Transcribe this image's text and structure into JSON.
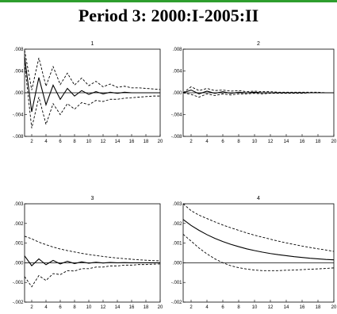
{
  "header": {
    "title": "Period 3: 2000:I-2005:II",
    "rule_color": "#2e9e2e"
  },
  "chart_data": [
    {
      "type": "line",
      "title": "1",
      "ylim": [
        -0.008,
        0.008
      ],
      "yticks": [
        -0.008,
        -0.004,
        0.0,
        0.004,
        0.008
      ],
      "ytick_labels": [
        "-.008",
        "-.004",
        ".000",
        ".004",
        ".008"
      ],
      "xlim": [
        1,
        20
      ],
      "xticks": [
        2,
        4,
        6,
        8,
        10,
        12,
        14,
        16,
        18,
        20
      ],
      "xtick_labels": [
        "2",
        "4",
        "6",
        "8",
        "10",
        "12",
        "14",
        "16",
        "18",
        "20"
      ],
      "x": [
        1,
        2,
        3,
        4,
        5,
        6,
        7,
        8,
        9,
        10,
        11,
        12,
        13,
        14,
        15,
        16,
        17,
        18,
        19,
        20
      ],
      "series": [
        {
          "style": "solid",
          "values": [
            0.0066,
            -0.0035,
            0.0028,
            -0.0022,
            0.0014,
            -0.0012,
            0.0008,
            -0.0006,
            0.0004,
            -0.0003,
            0.0002,
            -0.0002,
            0.0001,
            -0.0001,
            0.0001,
            0.0,
            0.0,
            0.0,
            0.0,
            0.0
          ]
        },
        {
          "style": "dashed",
          "values": [
            0.0078,
            0.0005,
            0.0064,
            0.0012,
            0.0048,
            0.0015,
            0.0036,
            0.0014,
            0.0027,
            0.0013,
            0.0021,
            0.0011,
            0.0016,
            0.001,
            0.0012,
            0.0009,
            0.0009,
            0.0008,
            0.0007,
            0.0006
          ]
        },
        {
          "style": "dashed",
          "values": [
            0.0054,
            -0.0065,
            -0.0008,
            -0.0058,
            -0.002,
            -0.004,
            -0.002,
            -0.003,
            -0.0018,
            -0.0022,
            -0.0014,
            -0.0016,
            -0.0012,
            -0.0012,
            -0.001,
            -0.0009,
            -0.0008,
            -0.0007,
            -0.0006,
            -0.0006
          ]
        }
      ]
    },
    {
      "type": "line",
      "title": "2",
      "ylim": [
        -0.008,
        0.008
      ],
      "yticks": [
        -0.008,
        -0.004,
        0.0,
        0.004,
        0.008
      ],
      "ytick_labels": [
        "-.008",
        "-.004",
        ".000",
        ".004",
        ".008"
      ],
      "xlim": [
        1,
        20
      ],
      "xticks": [
        2,
        4,
        6,
        8,
        10,
        12,
        14,
        16,
        18,
        20
      ],
      "xtick_labels": [
        "2",
        "4",
        "6",
        "8",
        "10",
        "12",
        "14",
        "16",
        "18",
        "20"
      ],
      "x": [
        1,
        2,
        3,
        4,
        5,
        6,
        7,
        8,
        9,
        10,
        11,
        12,
        13,
        14,
        15,
        16,
        17,
        18,
        19,
        20
      ],
      "series": [
        {
          "style": "solid",
          "values": [
            0.0,
            0.0005,
            -0.0002,
            0.0003,
            -0.0001,
            0.0002,
            -0.0001,
            0.0001,
            0.0,
            0.0001,
            0.0,
            0.0,
            0.0,
            0.0,
            0.0,
            0.0,
            0.0,
            0.0,
            0.0,
            0.0
          ]
        },
        {
          "style": "dashed",
          "values": [
            0.0,
            0.0011,
            0.0004,
            0.0008,
            0.0004,
            0.0005,
            0.0003,
            0.0004,
            0.0002,
            0.0003,
            0.0002,
            0.0002,
            0.0001,
            0.0001,
            0.0001,
            0.0001,
            0.0001,
            0.0001,
            0.0,
            0.0
          ]
        },
        {
          "style": "dashed",
          "values": [
            0.0,
            -0.0003,
            -0.0008,
            -0.0002,
            -0.0005,
            -0.0002,
            -0.0004,
            -0.0002,
            -0.0002,
            -0.0001,
            -0.0002,
            -0.0001,
            -0.0001,
            -0.0001,
            -0.0001,
            -0.0001,
            0.0,
            0.0,
            0.0,
            0.0
          ]
        }
      ]
    },
    {
      "type": "line",
      "title": "3",
      "ylim": [
        -0.002,
        0.003
      ],
      "yticks": [
        -0.002,
        -0.001,
        0.0,
        0.001,
        0.002,
        0.003
      ],
      "ytick_labels": [
        "-.002",
        "-.001",
        ".000",
        ".001",
        ".002",
        ".003"
      ],
      "xlim": [
        1,
        20
      ],
      "xticks": [
        2,
        4,
        6,
        8,
        10,
        12,
        14,
        16,
        18,
        20
      ],
      "xtick_labels": [
        "2",
        "4",
        "6",
        "8",
        "10",
        "12",
        "14",
        "16",
        "18",
        "20"
      ],
      "x": [
        1,
        2,
        3,
        4,
        5,
        6,
        7,
        8,
        9,
        10,
        11,
        12,
        13,
        14,
        15,
        16,
        17,
        18,
        19,
        20
      ],
      "series": [
        {
          "style": "solid",
          "values": [
            0.00035,
            -0.00015,
            0.0002,
            -0.0001,
            0.00012,
            -6e-05,
            8e-05,
            -4e-05,
            5e-05,
            -2e-05,
            3e-05,
            -1e-05,
            2e-05,
            0.0,
            1e-05,
            0.0,
            0.0,
            0.0,
            0.0,
            0.0
          ]
        },
        {
          "style": "dashed",
          "values": [
            0.00135,
            0.00122,
            0.00105,
            0.00092,
            0.0008,
            0.0007,
            0.00062,
            0.00055,
            0.00048,
            0.00042,
            0.00037,
            0.00032,
            0.00028,
            0.00024,
            0.00021,
            0.00018,
            0.00015,
            0.00013,
            0.00011,
            0.0001
          ]
        },
        {
          "style": "dashed",
          "values": [
            -0.0007,
            -0.00122,
            -0.00065,
            -0.0009,
            -0.00055,
            -0.0006,
            -0.0004,
            -0.00042,
            -0.0003,
            -0.0003,
            -0.00022,
            -0.00022,
            -0.00016,
            -0.00016,
            -0.00012,
            -0.00012,
            -9e-05,
            -9e-05,
            -7e-05,
            -6e-05
          ]
        }
      ]
    },
    {
      "type": "line",
      "title": "4",
      "ylim": [
        -0.002,
        0.003
      ],
      "yticks": [
        -0.002,
        -0.001,
        0.0,
        0.001,
        0.002,
        0.003
      ],
      "ytick_labels": [
        "-.002",
        "-.001",
        ".000",
        ".001",
        ".002",
        ".003"
      ],
      "xlim": [
        1,
        20
      ],
      "xticks": [
        2,
        4,
        6,
        8,
        10,
        12,
        14,
        16,
        18,
        20
      ],
      "xtick_labels": [
        "2",
        "4",
        "6",
        "8",
        "10",
        "12",
        "14",
        "16",
        "18",
        "20"
      ],
      "x": [
        1,
        2,
        3,
        4,
        5,
        6,
        7,
        8,
        9,
        10,
        11,
        12,
        13,
        14,
        15,
        16,
        17,
        18,
        19,
        20
      ],
      "series": [
        {
          "style": "solid",
          "values": [
            0.0022,
            0.0019,
            0.00165,
            0.00143,
            0.00124,
            0.00108,
            0.00094,
            0.00082,
            0.00071,
            0.00062,
            0.00054,
            0.00047,
            0.00041,
            0.00036,
            0.00031,
            0.00027,
            0.00023,
            0.0002,
            0.00017,
            0.00015
          ]
        },
        {
          "style": "dashed",
          "values": [
            0.003,
            0.00265,
            0.00242,
            0.00225,
            0.00208,
            0.00192,
            0.00178,
            0.00165,
            0.00152,
            0.0014,
            0.0013,
            0.0012,
            0.0011,
            0.00101,
            0.00093,
            0.00085,
            0.00078,
            0.00071,
            0.00065,
            0.00058
          ]
        },
        {
          "style": "dashed",
          "values": [
            0.00145,
            0.0011,
            0.00075,
            0.00045,
            0.0002,
            0.0,
            -0.00015,
            -0.00025,
            -0.00032,
            -0.00037,
            -0.0004,
            -0.0004,
            -0.0004,
            -0.00038,
            -0.00037,
            -0.00035,
            -0.00033,
            -0.00031,
            -0.00029,
            -0.00026
          ]
        }
      ]
    }
  ]
}
